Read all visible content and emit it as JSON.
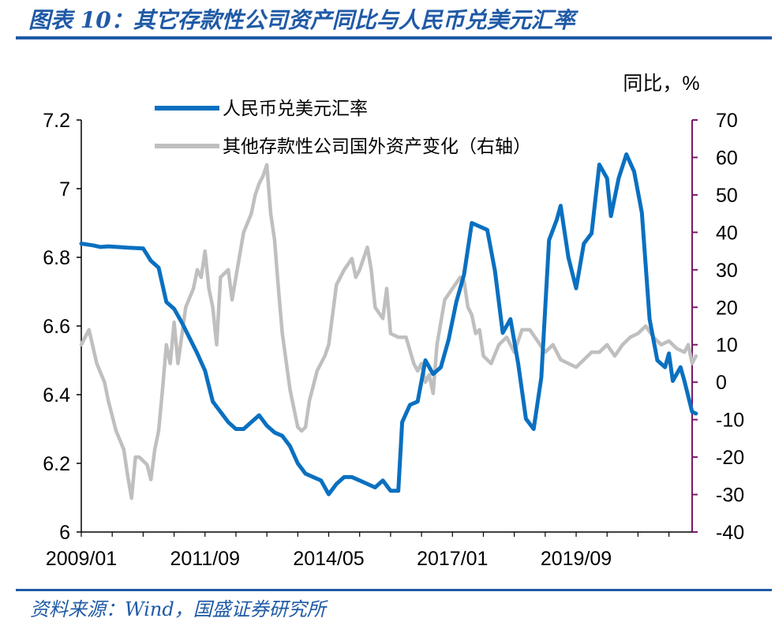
{
  "header": {
    "title": "图表 10：其它存款性公司资产同比与人民币兑美元汇率"
  },
  "footer": {
    "source": "资料来源：Wind，国盛证券研究所"
  },
  "colors": {
    "blue": "#0a70c0",
    "gray": "#bfbfbf",
    "right_axis": "#7a1a6a",
    "accent": "#1f5aa6"
  },
  "chart_data": {
    "type": "line",
    "title": "",
    "right_unit": "同比，%",
    "x_ticks": [
      "2009/01",
      "2011/09",
      "2014/05",
      "2017/01",
      "2019/09"
    ],
    "x_tick_index": [
      0,
      32,
      64,
      96,
      128
    ],
    "x_count": 158,
    "left_axis": {
      "min": 6,
      "max": 7.2,
      "ticks": [
        "7.2",
        "7",
        "6.8",
        "6.6",
        "6.4",
        "6.2",
        "6"
      ],
      "tick_values": [
        7.2,
        7,
        6.8,
        6.6,
        6.4,
        6.2,
        6
      ]
    },
    "right_axis": {
      "min": -40,
      "max": 70,
      "ticks": [
        "70",
        "60",
        "50",
        "40",
        "30",
        "20",
        "10",
        "0",
        "-10",
        "-20",
        "-30",
        "-40"
      ],
      "tick_values": [
        70,
        60,
        50,
        40,
        30,
        20,
        10,
        0,
        -10,
        -20,
        -30,
        -40
      ]
    },
    "legend": {
      "placement": "top",
      "entries": [
        "人民币兑美元汇率",
        "其他存款性公司国外资产变化（右轴）"
      ]
    },
    "series": [
      {
        "name": "人民币兑美元汇率",
        "axis": "left",
        "anchors": [
          [
            0,
            6.84
          ],
          [
            3,
            6.835
          ],
          [
            5,
            6.83
          ],
          [
            7,
            6.832
          ],
          [
            12,
            6.828
          ],
          [
            16,
            6.826
          ],
          [
            18,
            6.79
          ],
          [
            20,
            6.77
          ],
          [
            22,
            6.67
          ],
          [
            24,
            6.65
          ],
          [
            26,
            6.61
          ],
          [
            30,
            6.52
          ],
          [
            32,
            6.47
          ],
          [
            34,
            6.38
          ],
          [
            36,
            6.35
          ],
          [
            38,
            6.32
          ],
          [
            40,
            6.3
          ],
          [
            42,
            6.3
          ],
          [
            44,
            6.32
          ],
          [
            46,
            6.34
          ],
          [
            48,
            6.31
          ],
          [
            50,
            6.29
          ],
          [
            52,
            6.28
          ],
          [
            54,
            6.25
          ],
          [
            56,
            6.2
          ],
          [
            58,
            6.17
          ],
          [
            60,
            6.16
          ],
          [
            62,
            6.15
          ],
          [
            64,
            6.11
          ],
          [
            66,
            6.14
          ],
          [
            68,
            6.16
          ],
          [
            70,
            6.16
          ],
          [
            72,
            6.15
          ],
          [
            74,
            6.14
          ],
          [
            76,
            6.13
          ],
          [
            78,
            6.15
          ],
          [
            80,
            6.12
          ],
          [
            82,
            6.12
          ],
          [
            83,
            6.32
          ],
          [
            85,
            6.37
          ],
          [
            87,
            6.38
          ],
          [
            89,
            6.5
          ],
          [
            91,
            6.46
          ],
          [
            93,
            6.48
          ],
          [
            95,
            6.56
          ],
          [
            97,
            6.67
          ],
          [
            99,
            6.75
          ],
          [
            101,
            6.9
          ],
          [
            103,
            6.89
          ],
          [
            105,
            6.88
          ],
          [
            107,
            6.76
          ],
          [
            109,
            6.58
          ],
          [
            111,
            6.62
          ],
          [
            113,
            6.49
          ],
          [
            115,
            6.33
          ],
          [
            117,
            6.3
          ],
          [
            119,
            6.45
          ],
          [
            121,
            6.85
          ],
          [
            123,
            6.91
          ],
          [
            124,
            6.95
          ],
          [
            126,
            6.8
          ],
          [
            128,
            6.71
          ],
          [
            130,
            6.84
          ],
          [
            132,
            6.87
          ],
          [
            134,
            7.07
          ],
          [
            136,
            7.03
          ],
          [
            137,
            6.92
          ],
          [
            139,
            7.03
          ],
          [
            141,
            7.1
          ],
          [
            143,
            7.05
          ],
          [
            145,
            6.93
          ],
          [
            147,
            6.62
          ],
          [
            149,
            6.5
          ],
          [
            151,
            6.48
          ],
          [
            152,
            6.52
          ],
          [
            153,
            6.44
          ],
          [
            155,
            6.48
          ],
          [
            156,
            6.44
          ],
          [
            158,
            6.35
          ],
          [
            159,
            6.345
          ]
        ]
      },
      {
        "name": "其他存款性公司国外资产变化（右轴）",
        "axis": "right",
        "anchors": [
          [
            0,
            10
          ],
          [
            2,
            14
          ],
          [
            4,
            5
          ],
          [
            6,
            0
          ],
          [
            7,
            -5
          ],
          [
            9,
            -13
          ],
          [
            11,
            -18
          ],
          [
            12,
            -25
          ],
          [
            13,
            -31
          ],
          [
            14,
            -20
          ],
          [
            15,
            -20
          ],
          [
            17,
            -22
          ],
          [
            18,
            -26
          ],
          [
            19,
            -18
          ],
          [
            20,
            -13
          ],
          [
            21,
            -2
          ],
          [
            22,
            10
          ],
          [
            23,
            5
          ],
          [
            24,
            16
          ],
          [
            25,
            5
          ],
          [
            27,
            20
          ],
          [
            29,
            25
          ],
          [
            30,
            30
          ],
          [
            31,
            28
          ],
          [
            32,
            35
          ],
          [
            33,
            25
          ],
          [
            34,
            20
          ],
          [
            35,
            10
          ],
          [
            36,
            28
          ],
          [
            38,
            30
          ],
          [
            39,
            22
          ],
          [
            40,
            28
          ],
          [
            42,
            40
          ],
          [
            44,
            45
          ],
          [
            45,
            50
          ],
          [
            46,
            53
          ],
          [
            47,
            55
          ],
          [
            48,
            58
          ],
          [
            49,
            45
          ],
          [
            50,
            38
          ],
          [
            51,
            25
          ],
          [
            52,
            13
          ],
          [
            54,
            -2
          ],
          [
            56,
            -12
          ],
          [
            57,
            -13
          ],
          [
            58,
            -12
          ],
          [
            59,
            -5
          ],
          [
            61,
            3
          ],
          [
            63,
            7
          ],
          [
            64,
            10
          ],
          [
            66,
            26
          ],
          [
            68,
            30
          ],
          [
            70,
            33
          ],
          [
            71,
            28
          ],
          [
            72,
            30
          ],
          [
            74,
            36
          ],
          [
            75,
            30
          ],
          [
            76,
            20
          ],
          [
            78,
            17
          ],
          [
            79,
            25
          ],
          [
            80,
            13
          ],
          [
            82,
            12
          ],
          [
            84,
            12
          ],
          [
            86,
            5
          ],
          [
            87,
            3
          ],
          [
            88,
            5
          ],
          [
            89,
            0
          ],
          [
            90,
            2
          ],
          [
            91,
            -3
          ],
          [
            92,
            10
          ],
          [
            94,
            22
          ],
          [
            96,
            25
          ],
          [
            98,
            28
          ],
          [
            99,
            27
          ],
          [
            100,
            20
          ],
          [
            101,
            18
          ],
          [
            102,
            13
          ],
          [
            103,
            14
          ],
          [
            104,
            7
          ],
          [
            106,
            5
          ],
          [
            108,
            10
          ],
          [
            110,
            12
          ],
          [
            112,
            8
          ],
          [
            114,
            14
          ],
          [
            116,
            14
          ],
          [
            118,
            11
          ],
          [
            120,
            8
          ],
          [
            122,
            10
          ],
          [
            124,
            6
          ],
          [
            126,
            5
          ],
          [
            128,
            4
          ],
          [
            130,
            6
          ],
          [
            132,
            8
          ],
          [
            134,
            8
          ],
          [
            136,
            10
          ],
          [
            138,
            7
          ],
          [
            140,
            10
          ],
          [
            142,
            12
          ],
          [
            144,
            13
          ],
          [
            146,
            15
          ],
          [
            148,
            12
          ],
          [
            150,
            10
          ],
          [
            152,
            11
          ],
          [
            154,
            9
          ],
          [
            156,
            8
          ],
          [
            157,
            10
          ],
          [
            158,
            5
          ],
          [
            159,
            7
          ]
        ]
      }
    ]
  }
}
